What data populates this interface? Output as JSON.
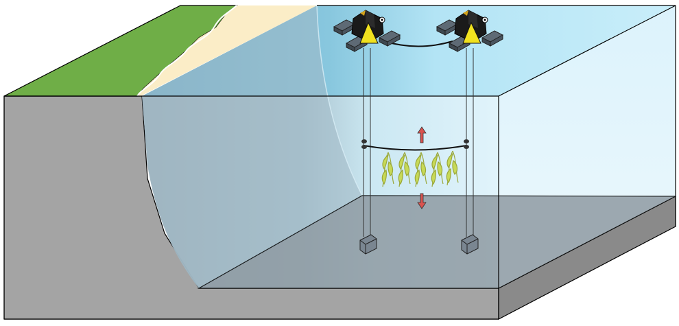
{
  "diagram": {
    "kind": "kelp-farm-cross-section",
    "components": [
      {
        "name": "land-grass",
        "color": "#6fae47"
      },
      {
        "name": "beach-sand",
        "color": "#fbedc7"
      },
      {
        "name": "seawater",
        "color": "#a9dcee"
      },
      {
        "name": "seabed",
        "color": "#8f9ba3"
      },
      {
        "name": "earth-cross-section",
        "color": "#a4a4a4"
      },
      {
        "name": "surface-buoy-left",
        "icon": "buoy-platform-icon"
      },
      {
        "name": "surface-buoy-right",
        "icon": "buoy-platform-icon"
      },
      {
        "name": "growth-line-with-kelp",
        "icon": "seaweed-icon",
        "count": 5
      },
      {
        "name": "anchor-block-left",
        "icon": "anchor-block-icon"
      },
      {
        "name": "anchor-block-right",
        "icon": "anchor-block-icon"
      },
      {
        "name": "depth-adjust-arrows",
        "icon": "up-down-arrow-icon",
        "color": "#d9534f"
      }
    ]
  }
}
